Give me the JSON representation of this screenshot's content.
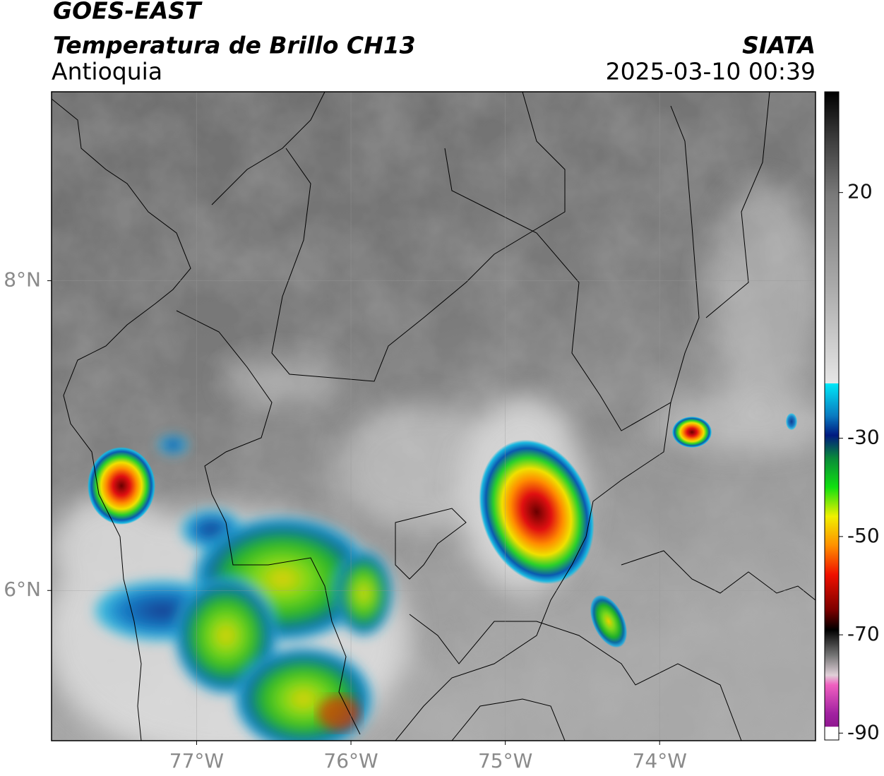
{
  "header": {
    "title": "GOES-EAST",
    "subtitle": "Temperatura de Brillo CH13",
    "region": "Antioquia",
    "source": "SIATA",
    "timestamp": "2025-03-10 00:39"
  },
  "map": {
    "xlim": [
      -77.94,
      -72.99
    ],
    "ylim": [
      5.03,
      9.22
    ],
    "xticks": [
      {
        "value": -77,
        "label": "77°W"
      },
      {
        "value": -76,
        "label": "76°W"
      },
      {
        "value": -75,
        "label": "75°W"
      },
      {
        "value": -74,
        "label": "74°W"
      }
    ],
    "yticks": [
      {
        "value": 6,
        "label": "6°N"
      },
      {
        "value": 8,
        "label": "8°N"
      }
    ],
    "grid": true
  },
  "colorbar": {
    "lim": [
      -91.4,
      40.5
    ],
    "ticks": [
      20,
      -30,
      -50,
      -70,
      -90
    ]
  }
}
